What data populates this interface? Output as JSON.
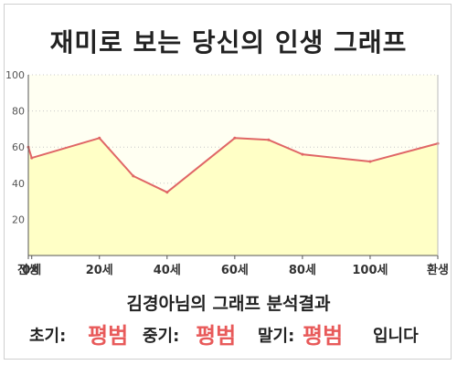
{
  "title": "재미로 보는 당신의 인생 그래프",
  "chart_data": {
    "type": "area",
    "title": "재미로 보는 당신의 인생 그래프",
    "categories": [
      "전생",
      "0세",
      "20세",
      "40세",
      "60세",
      "80세",
      "100세",
      "환생"
    ],
    "x": [
      -1,
      0,
      20,
      40,
      60,
      80,
      100,
      120
    ],
    "series": [
      {
        "x": [
          -1,
          0,
          20,
          30,
          40,
          60,
          70,
          80,
          100,
          120
        ],
        "values": [
          60,
          54,
          65,
          44,
          35,
          65,
          64,
          56,
          52,
          62
        ]
      }
    ],
    "ylim": [
      0,
      100
    ],
    "yticks": [
      20,
      40,
      60,
      80,
      100
    ],
    "grid": "horizontal-dashed",
    "legend": "none",
    "colors": {
      "line": "#e06666",
      "fill": "#ffffc6",
      "plot_bg": "#fffff2",
      "verdict": "#e85a5a"
    }
  },
  "result": {
    "title": "김경아님의 그래프 분석결과",
    "early_label": "초기:",
    "early_value": "평범",
    "middle_label": "중기:",
    "middle_value": "평범",
    "late_label": "말기:",
    "late_value": "평범",
    "suffix": "입니다"
  }
}
